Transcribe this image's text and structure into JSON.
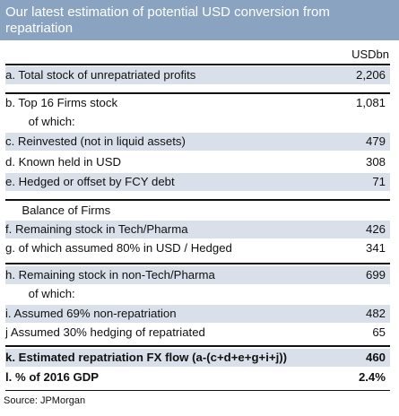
{
  "title": "Our latest estimation of potential USD conversion from repatriation",
  "unit_label": "USDbn",
  "rows": [
    {
      "label": "a.  Total stock of unrepatriated profits",
      "value": "2,206"
    },
    {
      "label": "b.  Top 16 Firms stock",
      "value": "1,081"
    },
    {
      "label": "       of which:",
      "value": ""
    },
    {
      "label": "c.  Reinvested (not in liquid assets)",
      "value": "479"
    },
    {
      "label": "d.  Known held in USD",
      "value": "308"
    },
    {
      "label": "e.  Hedged or offset by FCY debt",
      "value": "71"
    },
    {
      "label": "     Balance of Firms",
      "value": ""
    },
    {
      "label": "f.   Remaining stock in Tech/Pharma",
      "value": "426"
    },
    {
      "label": "g.  of which assumed 80% in USD / Hedged",
      "value": "341"
    },
    {
      "label": "h.  Remaining stock in non-Tech/Pharma",
      "value": "699"
    },
    {
      "label": "       of which:",
      "value": ""
    },
    {
      "label": "i.   Assumed 69% non-repatriation",
      "value": "482"
    },
    {
      "label": "j    Assumed 30% hedging of repatriated",
      "value": "65"
    },
    {
      "label": "k.  Estimated repatriation FX flow (a-(c+d+e+g+i+j))",
      "value": "460"
    },
    {
      "label": "l.   % of 2016 GDP",
      "value": "2.4%"
    }
  ],
  "source": "Source: JPMorgan",
  "colors": {
    "title_bg": "#8aa3c0",
    "row_shade": "#d9e0ea",
    "text": "#111111"
  }
}
